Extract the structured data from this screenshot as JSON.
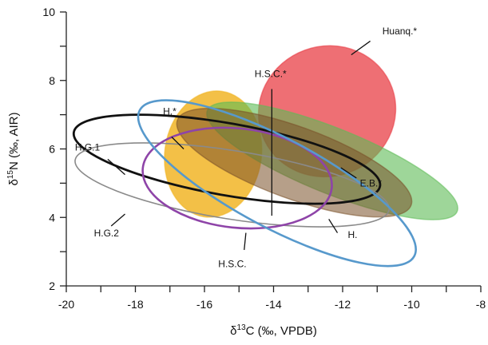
{
  "chart_data": {
    "type": "scatter",
    "title": "",
    "xlabel": {
      "prefix": "δ",
      "sup": "13",
      "main": "C (‰, VPDB)"
    },
    "ylabel": {
      "prefix": "δ",
      "sup": "15",
      "main": "N (‰, AIR)"
    },
    "xlim": [
      -20,
      -8
    ],
    "ylim": [
      2,
      10
    ],
    "x_ticks_labeled": [
      -20,
      -18,
      -16,
      -14,
      -12,
      -10,
      -8
    ],
    "x_ticks_minor": [
      -19,
      -17,
      -15,
      -13,
      -11,
      -9
    ],
    "y_ticks_labeled": [
      2,
      4,
      6,
      8,
      10
    ],
    "y_ticks_minor": [
      3,
      5,
      7,
      9
    ],
    "grid": false,
    "legend": "none",
    "series": [
      {
        "name": "Huanq.*",
        "kind": "filled",
        "color": "#e8373f",
        "opacity": 0.72,
        "cx": -12.45,
        "cy": 7.1,
        "rx": 2.0,
        "ry": 1.9,
        "rotation": 20,
        "label_pos": [
          -10.85,
          9.35
        ],
        "leader": [
          [
            -11.2,
            9.15
          ],
          [
            -11.75,
            8.75
          ]
        ]
      },
      {
        "name": "H.*",
        "kind": "filled",
        "color": "#f0b21f",
        "opacity": 0.82,
        "cx": -15.75,
        "cy": 5.85,
        "rx": 1.4,
        "ry": 1.85,
        "rotation": -8,
        "label_pos": [
          -17.2,
          7.0
        ],
        "leader": [
          [
            -16.95,
            6.35
          ],
          [
            -16.6,
            6.0
          ]
        ]
      },
      {
        "name": "E.B.*",
        "kind": "filled",
        "color": "#5dbb55",
        "opacity": 0.6,
        "cx": -12.3,
        "cy": 5.65,
        "rx": 3.9,
        "ry": 0.95,
        "rotation": -22,
        "label_pos": [
          -11.5,
          4.9
        ],
        "leader": [
          [
            -12.05,
            5.45
          ],
          [
            -11.6,
            5.15
          ]
        ]
      },
      {
        "name": "H.S.C.*",
        "kind": "filled",
        "color": "#7a5028",
        "opacity": 0.55,
        "cx": -13.4,
        "cy": 5.6,
        "rx": 3.6,
        "ry": 1.05,
        "rotation": -20,
        "label_pos": [
          -14.55,
          8.1
        ],
        "leader": [
          [
            -14.05,
            7.75
          ],
          [
            -14.05,
            4.05
          ]
        ]
      },
      {
        "name": "H.G.1",
        "kind": "ring",
        "color": "#111111",
        "width": 2.8,
        "cx": -15.35,
        "cy": 5.7,
        "rx": 4.5,
        "ry": 1.05,
        "rotation": -10,
        "label_pos": [
          -19.75,
          5.95
        ],
        "leader": [
          [
            -18.8,
            5.7
          ],
          [
            -18.3,
            5.25
          ]
        ]
      },
      {
        "name": "H.G.2",
        "kind": "ring",
        "color": "#8a8a8a",
        "width": 1.6,
        "cx": -15.2,
        "cy": 4.95,
        "rx": 4.6,
        "ry": 1.0,
        "rotation": -9,
        "label_pos": [
          -19.2,
          3.45
        ],
        "leader": [
          [
            -18.7,
            3.75
          ],
          [
            -18.3,
            4.1
          ]
        ]
      },
      {
        "name": "H.S.C.",
        "kind": "ring",
        "color": "#8e44a8",
        "width": 2.6,
        "cx": -15.05,
        "cy": 5.15,
        "rx": 2.75,
        "ry": 1.45,
        "rotation": -6,
        "label_pos": [
          -15.6,
          2.55
        ],
        "leader": [
          [
            -14.85,
            3.05
          ],
          [
            -14.8,
            3.55
          ]
        ]
      },
      {
        "name": "H.",
        "kind": "ring",
        "color": "#5799cc",
        "width": 2.6,
        "cx": -13.9,
        "cy": 5.0,
        "rx": 4.5,
        "ry": 1.3,
        "rotation": -28,
        "label_pos": [
          -11.85,
          3.4
        ],
        "leader": [
          [
            -12.15,
            3.55
          ],
          [
            -12.4,
            3.95
          ]
        ]
      }
    ]
  }
}
